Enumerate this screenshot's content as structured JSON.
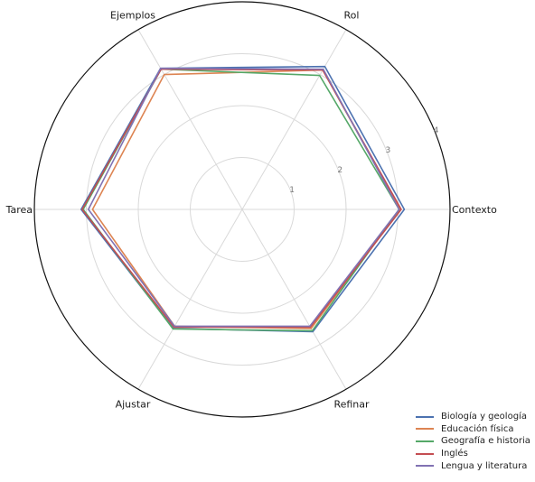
{
  "chart_data": {
    "type": "radar",
    "title": "",
    "axes": [
      "Contexto",
      "Rol",
      "Ejemplos",
      "Tarea",
      "Ajustar",
      "Refinar"
    ],
    "rlim": [
      0,
      4
    ],
    "rticks": [
      "1",
      "2",
      "3",
      "4"
    ],
    "grid": true,
    "legend_position": "bottom-right",
    "series": [
      {
        "name": "Biología y geología",
        "color": "#4c72b0",
        "values": [
          3.12,
          3.18,
          3.14,
          3.1,
          2.65,
          2.72
        ]
      },
      {
        "name": "Educación física",
        "color": "#dd8452",
        "values": [
          3.04,
          3.1,
          3.0,
          2.88,
          2.6,
          2.65
        ]
      },
      {
        "name": "Geografía e historia",
        "color": "#55a868",
        "values": [
          3.02,
          2.98,
          3.12,
          3.06,
          2.66,
          2.7
        ]
      },
      {
        "name": "Inglés",
        "color": "#c44e52",
        "values": [
          3.06,
          3.1,
          3.12,
          3.08,
          2.62,
          2.62
        ]
      },
      {
        "name": "Lengua y literatura",
        "color": "#8172b3",
        "values": [
          3.02,
          3.12,
          3.14,
          2.96,
          2.6,
          2.6
        ]
      }
    ]
  }
}
